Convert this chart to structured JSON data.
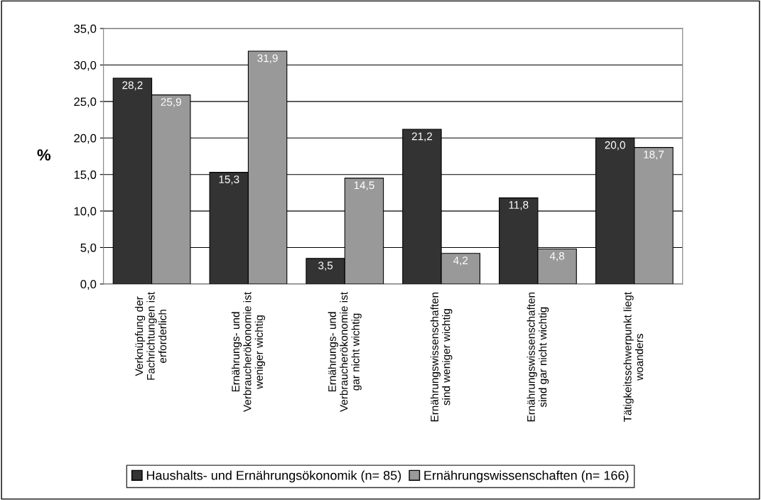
{
  "chart_data": {
    "type": "bar",
    "ylabel": "%",
    "categories": [
      "Verknüpfung der\nFachrichtungen ist\nerforderlich",
      "Ernährungs- und\nVerbraucherökonomie ist\nweniger wichtig",
      "Ernährungs- und\nVerbraucherökonomie ist\ngar nicht wichtig",
      "Ernährungswissenschaften\nsind weniger wichtig",
      "Ernährungswissenschaften\nsind gar nicht wichtig",
      "Tätigkeitsschwerpunkt liegt\nwoanders"
    ],
    "series": [
      {
        "name": "Haushalts- und Ernährungsökonomik (n= 85)",
        "color": "#333333",
        "values": [
          28.2,
          15.3,
          3.5,
          21.2,
          11.8,
          20.0
        ],
        "value_labels": [
          "28,2",
          "15,3",
          "3,5",
          "21,2",
          "11,8",
          "20,0"
        ]
      },
      {
        "name": "Ernährungswissenschaften (n= 166)",
        "color": "#999999",
        "values": [
          25.9,
          31.9,
          14.5,
          4.2,
          4.8,
          18.7
        ],
        "value_labels": [
          "25,9",
          "31,9",
          "14,5",
          "4,2",
          "4,8",
          "18,7"
        ]
      }
    ],
    "ylim": [
      0,
      35
    ],
    "yticks": [
      {
        "value": 0,
        "label": "0,0"
      },
      {
        "value": 5,
        "label": "5,0"
      },
      {
        "value": 10,
        "label": "10,0"
      },
      {
        "value": 15,
        "label": "15,0"
      },
      {
        "value": 20,
        "label": "20,0"
      },
      {
        "value": 25,
        "label": "25,0"
      },
      {
        "value": 30,
        "label": "30,0"
      },
      {
        "value": 35,
        "label": "35,0"
      }
    ],
    "grid": "y",
    "legend": "bottom"
  }
}
